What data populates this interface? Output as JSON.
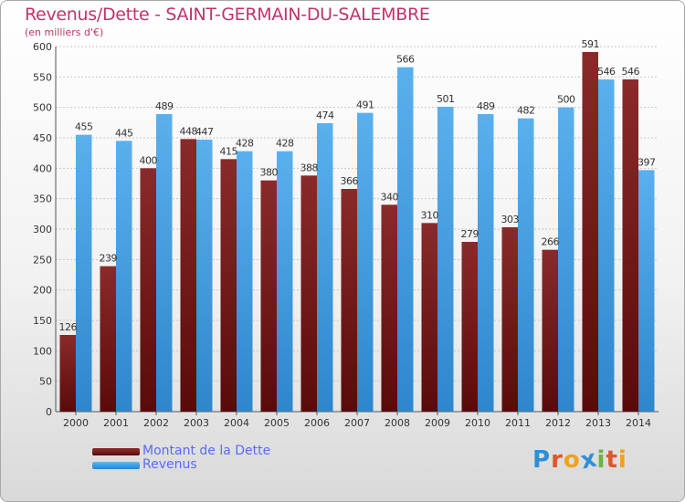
{
  "chart_data": {
    "type": "bar",
    "title": "Revenus/Dette - SAINT-GERMAIN-DU-SALEMBRE",
    "subtitle": "(en milliers d'€)",
    "categories": [
      "2000",
      "2001",
      "2002",
      "2003",
      "2004",
      "2005",
      "2006",
      "2007",
      "2008",
      "2009",
      "2010",
      "2011",
      "2012",
      "2013",
      "2014"
    ],
    "series": [
      {
        "name": "Montant de la Dette",
        "color": "#7a1f1f",
        "values": [
          126,
          239,
          400,
          448,
          415,
          380,
          388,
          366,
          340,
          310,
          279,
          303,
          266,
          591,
          546
        ]
      },
      {
        "name": "Revenus",
        "color": "#3f9be0",
        "values": [
          455,
          445,
          489,
          447,
          428,
          428,
          474,
          491,
          566,
          501,
          489,
          482,
          500,
          546,
          397
        ]
      }
    ],
    "ylim": [
      0,
      600
    ],
    "yticks": [
      0,
      50,
      100,
      150,
      200,
      250,
      300,
      350,
      400,
      450,
      500,
      550,
      600
    ],
    "grid": true,
    "legend": "bottom-left"
  },
  "brand": {
    "text": "Proxiti",
    "letters": [
      "P",
      "r",
      "o",
      "x",
      "i",
      "t",
      "i"
    ],
    "colors": [
      "#2f8fd6",
      "#e0552a",
      "#f0a020",
      "#2f8fd6",
      "#6cb33e",
      "#e0552a",
      "#f0a020"
    ]
  }
}
